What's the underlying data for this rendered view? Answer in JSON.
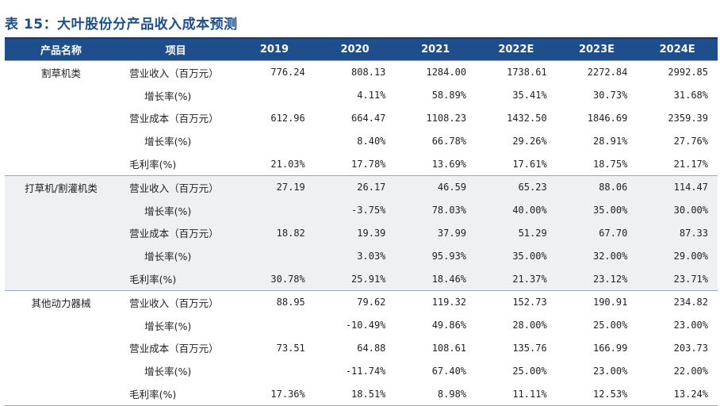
{
  "title": "表 15：大叶股份分产品收入成本预测",
  "header": {
    "product": "产品名称",
    "item": "项目",
    "years": [
      "2019",
      "2020",
      "2021",
      "2022E",
      "2023E",
      "2024E"
    ]
  },
  "groups": [
    {
      "product": "割草机类",
      "rows": [
        {
          "item": "营业收入（百万元）",
          "values": [
            "776.24",
            "808.13",
            "1284.00",
            "1738.61",
            "2272.84",
            "2992.85"
          ]
        },
        {
          "item": "增长率(%)",
          "values": [
            "",
            "4.11%",
            "58.89%",
            "35.41%",
            "30.73%",
            "31.68%"
          ]
        },
        {
          "item": "营业成本（百万元）",
          "values": [
            "612.96",
            "664.47",
            "1108.23",
            "1432.50",
            "1846.69",
            "2359.39"
          ]
        },
        {
          "item": "增长率(%)",
          "values": [
            "",
            "8.40%",
            "66.78%",
            "29.26%",
            "28.91%",
            "27.76%"
          ]
        },
        {
          "item": "毛利率(%)",
          "values": [
            "21.03%",
            "17.78%",
            "13.69%",
            "17.61%",
            "18.75%",
            "21.17%"
          ]
        }
      ]
    },
    {
      "product": "打草机/割灌机类",
      "rows": [
        {
          "item": "营业收入（百万元）",
          "values": [
            "27.19",
            "26.17",
            "46.59",
            "65.23",
            "88.06",
            "114.47"
          ]
        },
        {
          "item": "增长率(%)",
          "values": [
            "",
            "-3.75%",
            "78.03%",
            "40.00%",
            "35.00%",
            "30.00%"
          ]
        },
        {
          "item": "营业成本（百万元）",
          "values": [
            "18.82",
            "19.39",
            "37.99",
            "51.29",
            "67.70",
            "87.33"
          ]
        },
        {
          "item": "增长率(%)",
          "values": [
            "",
            "3.03%",
            "95.93%",
            "35.00%",
            "32.00%",
            "29.00%"
          ]
        },
        {
          "item": "毛利率(%)",
          "values": [
            "30.78%",
            "25.91%",
            "18.46%",
            "21.37%",
            "23.12%",
            "23.71%"
          ]
        }
      ]
    },
    {
      "product": "其他动力器械",
      "rows": [
        {
          "item": "营业收入（百万元）",
          "values": [
            "88.95",
            "79.62",
            "119.32",
            "152.73",
            "190.91",
            "234.82"
          ]
        },
        {
          "item": "增长率(%)",
          "values": [
            "",
            "-10.49%",
            "49.86%",
            "28.00%",
            "25.00%",
            "23.00%"
          ]
        },
        {
          "item": "营业成本（百万元）",
          "values": [
            "73.51",
            "64.88",
            "108.61",
            "135.76",
            "166.99",
            "203.73"
          ]
        },
        {
          "item": "增长率(%)",
          "values": [
            "",
            "-11.74%",
            "67.40%",
            "25.00%",
            "23.00%",
            "22.00%"
          ]
        },
        {
          "item": "毛利率(%)",
          "values": [
            "17.36%",
            "18.51%",
            "8.98%",
            "11.11%",
            "12.53%",
            "13.24%"
          ]
        }
      ]
    }
  ]
}
